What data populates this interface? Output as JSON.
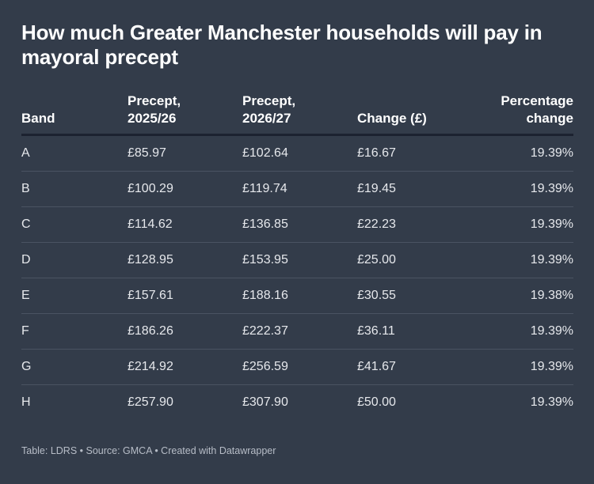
{
  "chart_data": {
    "type": "table",
    "title": "How much Greater Manchester households will pay in mayoral precept",
    "columns": [
      "Band",
      "Precept,\n2025/26",
      "Precept,\n2026/27",
      "Change (£)",
      "Percentage\nchange"
    ],
    "rows": [
      [
        "A",
        "£85.97",
        "£102.64",
        "£16.67",
        "19.39%"
      ],
      [
        "B",
        "£100.29",
        "£119.74",
        "£19.45",
        "19.39%"
      ],
      [
        "C",
        "£114.62",
        "£136.85",
        "£22.23",
        "19.39%"
      ],
      [
        "D",
        "£128.95",
        "£153.95",
        "£25.00",
        "19.39%"
      ],
      [
        "E",
        "£157.61",
        "£188.16",
        "£30.55",
        "19.38%"
      ],
      [
        "F",
        "£186.26",
        "£222.37",
        "£36.11",
        "19.39%"
      ],
      [
        "G",
        "£214.92",
        "£256.59",
        "£41.67",
        "19.39%"
      ],
      [
        "H",
        "£257.90",
        "£307.90",
        "£50.00",
        "19.39%"
      ]
    ],
    "footer": "Table: LDRS • Source: GMCA • Created with Datawrapper"
  },
  "colors": {
    "background": "#333c4a",
    "text": "#ffffff",
    "row_divider": "#4a5362",
    "header_rule": "#1c2230"
  }
}
